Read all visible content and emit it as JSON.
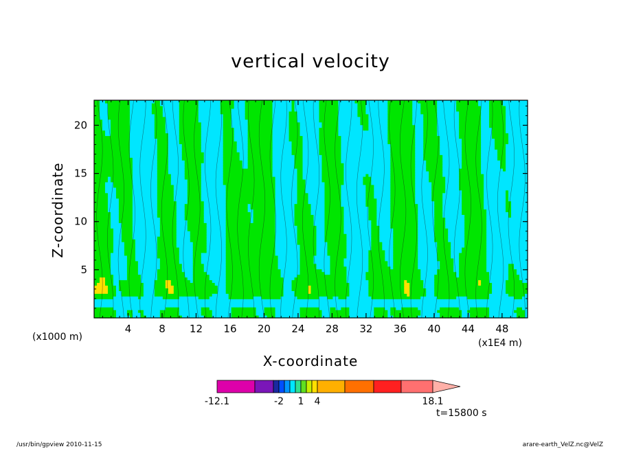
{
  "chart_data": {
    "type": "heatmap",
    "title": "vertical velocity",
    "xlabel": "X-coordinate",
    "ylabel": "Z-coordinate",
    "x_unit_left": "(x1000 m)",
    "x_unit_right": "(x1E4 m)",
    "x_ticks": [
      4,
      8,
      12,
      16,
      20,
      24,
      28,
      32,
      36,
      40,
      44,
      48
    ],
    "y_ticks": [
      5,
      10,
      15,
      20
    ],
    "xlim": [
      0,
      51
    ],
    "ylim": [
      0,
      22.6
    ],
    "colorbar": {
      "min_label": "-12.1",
      "max_label": "18.1",
      "labels": [
        "-12.1",
        "-2",
        "1",
        "4",
        "18.1"
      ],
      "colors": [
        "#dd00aa",
        "#7a16b8",
        "#1a2aa0",
        "#0050ff",
        "#0096ff",
        "#00e6ff",
        "#30e090",
        "#60e020",
        "#c8f000",
        "#ffe000",
        "#ffb000",
        "#ff7000",
        "#ff2020",
        "#ff7070",
        "#ffb0a8"
      ],
      "extend": "max"
    },
    "field_colors": {
      "negative": "#00e6ff",
      "positive": "#00e600",
      "strong_positive": "#ffe000"
    },
    "time_label": "t=15800 s"
  },
  "footer": {
    "left": "/usr/bin/gpview   2010-11-15",
    "right": "arare-earth_VelZ.nc@VelZ"
  }
}
